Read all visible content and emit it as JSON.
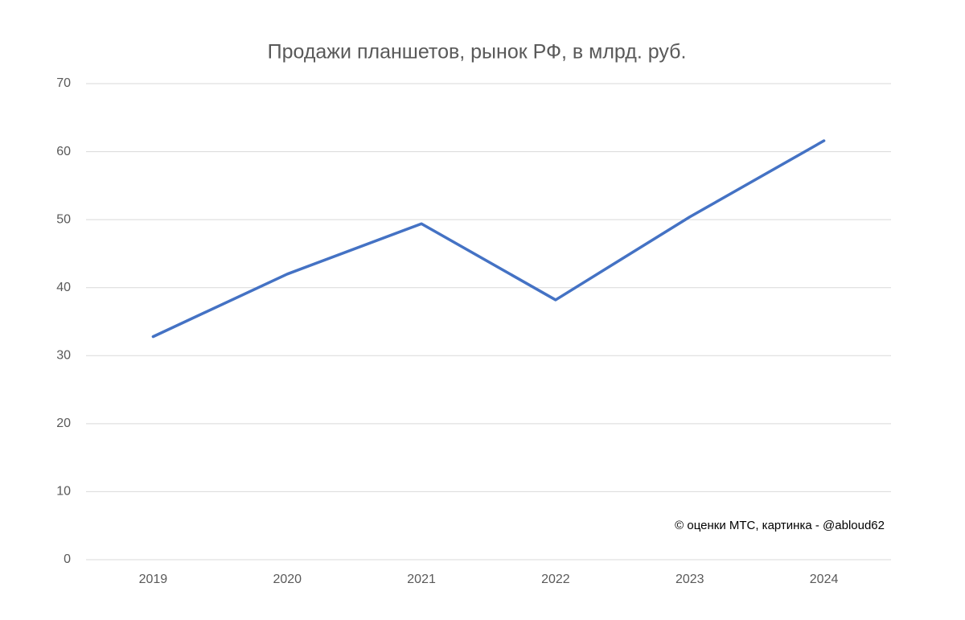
{
  "chart_data": {
    "type": "line",
    "title": "Продажи планшетов, рынок РФ, в млрд. руб.",
    "annotation": "© оценки МТС, картинка - @abloud62",
    "categories": [
      "2019",
      "2020",
      "2021",
      "2022",
      "2023",
      "2024"
    ],
    "values": [
      32.8,
      42.0,
      49.4,
      38.2,
      50.4,
      61.6
    ],
    "color": "#4472c4",
    "ylim": [
      0,
      70
    ],
    "yticks": [
      0,
      10,
      20,
      30,
      40,
      50,
      60,
      70
    ],
    "grid": true
  }
}
